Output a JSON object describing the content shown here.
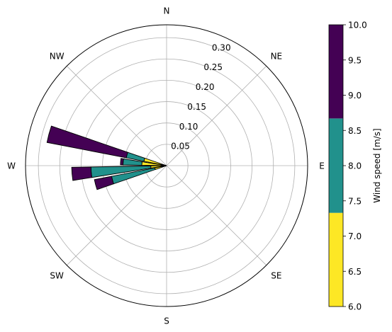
{
  "chart_data": {
    "type": "windrose",
    "title": "",
    "directions": [
      "N",
      "NE",
      "E",
      "SE",
      "S",
      "SW",
      "W",
      "NW"
    ],
    "radial_ticks": [
      "0.05",
      "0.10",
      "0.15",
      "0.20",
      "0.25",
      "0.30"
    ],
    "radial_max": 0.33,
    "grid": true,
    "colorbar": {
      "label": "Wind speed [m/s]",
      "ticks": [
        "6.0",
        "6.5",
        "7.0",
        "7.5",
        "8.0",
        "8.5",
        "9.0",
        "9.5",
        "10.0"
      ],
      "range": [
        6.0,
        10.0
      ],
      "bins": [
        {
          "low": 6.0,
          "high": 7.33,
          "color": "#fde725"
        },
        {
          "low": 7.33,
          "high": 8.67,
          "color": "#21918c"
        },
        {
          "low": 8.67,
          "high": 10.0,
          "color": "#440154"
        }
      ]
    },
    "sector_width_deg": 8,
    "sectors": [
      {
        "direction_deg": 285,
        "stacks": [
          0.054,
          0.042,
          0.189
        ]
      },
      {
        "direction_deg": 275,
        "stacks": [
          0.058,
          0.044,
          0.006
        ]
      },
      {
        "direction_deg": 265,
        "stacks": [
          0.037,
          0.14,
          0.045
        ]
      },
      {
        "direction_deg": 255,
        "stacks": [
          0.028,
          0.103,
          0.041
        ]
      }
    ]
  }
}
